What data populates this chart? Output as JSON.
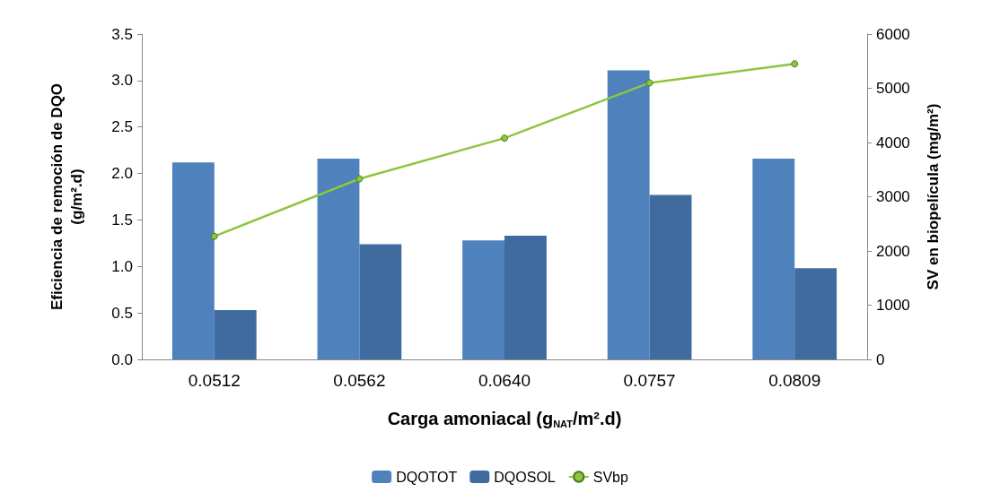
{
  "chart_data": {
    "type": "bar",
    "categories": [
      "0.0512",
      "0.0562",
      "0.0640",
      "0.0757",
      "0.0809"
    ],
    "xlabel": "Carga amoniacal (g$_{NAT}$/m².d)",
    "ylabel": "Eficiencia de remoción de DQO\n(g/m².d)",
    "y2label": "SV en biopelícula (mg/m²)",
    "ylim": [
      0,
      3.5
    ],
    "yticks": [
      {
        "value": 0,
        "label": "0.0"
      },
      {
        "value": 0.5,
        "label": "0.5"
      },
      {
        "value": 1,
        "label": "1.0"
      },
      {
        "value": 1.5,
        "label": "1.5"
      },
      {
        "value": 2,
        "label": "2.0"
      },
      {
        "value": 2.5,
        "label": "2.5"
      },
      {
        "value": 3,
        "label": "3.0"
      },
      {
        "value": 3.5,
        "label": "3.5"
      }
    ],
    "y2lim": [
      0,
      6000
    ],
    "y2ticks": [
      0,
      1000,
      2000,
      3000,
      4000,
      5000,
      6000
    ],
    "legend": "bottom",
    "series": [
      {
        "name": "DQOTOT",
        "color": "#4f81bd",
        "values": [
          2.12,
          2.16,
          1.28,
          3.11,
          2.16
        ]
      },
      {
        "name": "DQOSOL",
        "color": "#3f6b9e",
        "values": [
          0.53,
          1.24,
          1.33,
          1.77,
          0.98
        ]
      },
      {
        "name": "SVbp",
        "type": "line",
        "axis": "y2",
        "color": "#8cc63f",
        "marker": "circle",
        "values": [
          2270,
          3330,
          4080,
          5100,
          5450
        ]
      }
    ]
  }
}
